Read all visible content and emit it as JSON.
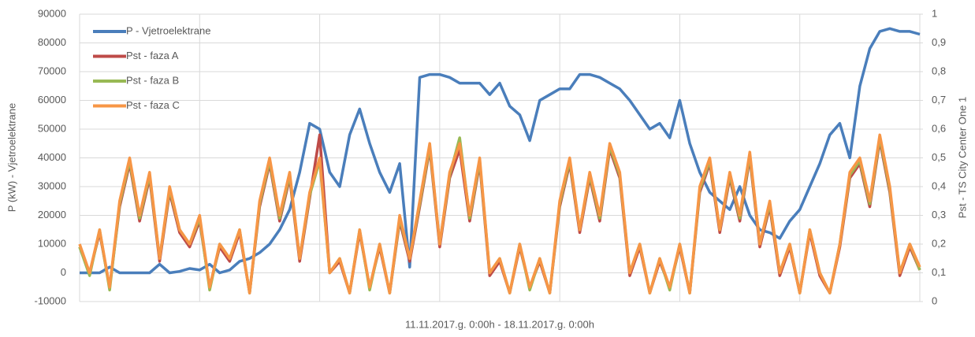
{
  "chart_data": {
    "type": "line",
    "x_label": "11.11.2017.g. 0:00h - 18.11.2017.g. 0:00h",
    "y_label": "P (kW) - Vjetroelektrane",
    "y2_label": "Pst - TS City Center One 1",
    "x": [
      0,
      2,
      4,
      6,
      8,
      10,
      12,
      14,
      16,
      18,
      20,
      22,
      24,
      26,
      28,
      30,
      32,
      34,
      36,
      38,
      40,
      42,
      44,
      46,
      48,
      50,
      52,
      54,
      56,
      58,
      60,
      62,
      64,
      66,
      68,
      70,
      72,
      74,
      76,
      78,
      80,
      82,
      84,
      86,
      88,
      90,
      92,
      94,
      96,
      98,
      100,
      102,
      104,
      106,
      108,
      110,
      112,
      114,
      116,
      118,
      120,
      122,
      124,
      126,
      128,
      130,
      132,
      134,
      136,
      138,
      140,
      142,
      144,
      146,
      148,
      150,
      152,
      154,
      156,
      158,
      160,
      162,
      164,
      166,
      168
    ],
    "xlim": [
      0,
      168
    ],
    "xticks": [
      0,
      24,
      48,
      72,
      96,
      120,
      144,
      168
    ],
    "ylim": [
      -10000,
      90000
    ],
    "yticks": [
      -10000,
      0,
      10000,
      20000,
      30000,
      40000,
      50000,
      60000,
      70000,
      80000,
      90000
    ],
    "y2lim": [
      0,
      1
    ],
    "y2ticks": [
      0,
      {
        "value": 0.1,
        "label": "0,1"
      },
      {
        "value": 0.2,
        "label": "0,2"
      },
      {
        "value": 0.3,
        "label": "0,3"
      },
      {
        "value": 0.4,
        "label": "0,4"
      },
      {
        "value": 0.5,
        "label": "0,5"
      },
      {
        "value": 0.6,
        "label": "0,6"
      },
      {
        "value": 0.7,
        "label": "0,7"
      },
      {
        "value": 0.8,
        "label": "0,8"
      },
      {
        "value": 0.9,
        "label": "0,9"
      },
      1
    ],
    "grid": true,
    "legend": "upper-left",
    "series": [
      {
        "name": "P - Vjetroelektrane",
        "color": "#4a7ebb",
        "axis": "y",
        "values": [
          0,
          0,
          0,
          2000,
          0,
          0,
          0,
          0,
          3000,
          0,
          500,
          1500,
          1000,
          3000,
          0,
          1000,
          4000,
          5000,
          7000,
          10000,
          15000,
          22000,
          35000,
          52000,
          50000,
          35000,
          30000,
          48000,
          57000,
          45000,
          35000,
          28000,
          38000,
          2000,
          68000,
          69000,
          69000,
          68000,
          66000,
          66000,
          66000,
          62000,
          66000,
          58000,
          55000,
          46000,
          60000,
          62000,
          64000,
          64000,
          69000,
          69000,
          68000,
          66000,
          64000,
          60000,
          55000,
          50000,
          52000,
          47000,
          60000,
          45000,
          35000,
          28000,
          25000,
          22000,
          30000,
          20000,
          15000,
          14000,
          12000,
          18000,
          22000,
          30000,
          38000,
          48000,
          52000,
          40000,
          65000,
          78000,
          84000,
          85000,
          84000,
          84000,
          83000
        ]
      },
      {
        "name": "Pst - faza A",
        "color": "#be4b48",
        "axis": "y2",
        "values": [
          0.19,
          0.1,
          0.24,
          0.05,
          0.33,
          0.48,
          0.28,
          0.43,
          0.14,
          0.38,
          0.24,
          0.19,
          0.28,
          0.05,
          0.19,
          0.14,
          0.24,
          0.03,
          0.33,
          0.48,
          0.28,
          0.43,
          0.14,
          0.36,
          0.58,
          0.1,
          0.14,
          0.03,
          0.24,
          0.05,
          0.19,
          0.03,
          0.28,
          0.14,
          0.33,
          0.53,
          0.19,
          0.43,
          0.53,
          0.28,
          0.48,
          0.09,
          0.14,
          0.03,
          0.19,
          0.05,
          0.14,
          0.03,
          0.33,
          0.48,
          0.24,
          0.43,
          0.28,
          0.53,
          0.43,
          0.09,
          0.19,
          0.03,
          0.14,
          0.05,
          0.19,
          0.03,
          0.38,
          0.48,
          0.24,
          0.43,
          0.28,
          0.5,
          0.19,
          0.33,
          0.09,
          0.19,
          0.03,
          0.24,
          0.09,
          0.03,
          0.19,
          0.43,
          0.48,
          0.33,
          0.56,
          0.38,
          0.09,
          0.19,
          0.11
        ]
      },
      {
        "name": "Pst - faza B",
        "color": "#98b954",
        "axis": "y2",
        "values": [
          0.19,
          0.09,
          0.25,
          0.04,
          0.34,
          0.49,
          0.29,
          0.44,
          0.15,
          0.39,
          0.25,
          0.2,
          0.29,
          0.04,
          0.2,
          0.15,
          0.25,
          0.03,
          0.34,
          0.49,
          0.29,
          0.44,
          0.15,
          0.37,
          0.49,
          0.1,
          0.15,
          0.03,
          0.25,
          0.04,
          0.2,
          0.03,
          0.29,
          0.15,
          0.34,
          0.54,
          0.2,
          0.44,
          0.57,
          0.29,
          0.49,
          0.1,
          0.15,
          0.03,
          0.2,
          0.04,
          0.15,
          0.03,
          0.34,
          0.49,
          0.25,
          0.44,
          0.29,
          0.54,
          0.44,
          0.1,
          0.2,
          0.03,
          0.15,
          0.04,
          0.2,
          0.03,
          0.39,
          0.49,
          0.25,
          0.44,
          0.29,
          0.51,
          0.2,
          0.34,
          0.1,
          0.2,
          0.03,
          0.25,
          0.1,
          0.03,
          0.2,
          0.44,
          0.49,
          0.34,
          0.57,
          0.39,
          0.1,
          0.2,
          0.11
        ]
      },
      {
        "name": "Pst - faza C",
        "color": "#f79646",
        "axis": "y2",
        "values": [
          0.2,
          0.1,
          0.25,
          0.05,
          0.35,
          0.5,
          0.3,
          0.45,
          0.15,
          0.4,
          0.25,
          0.2,
          0.3,
          0.05,
          0.2,
          0.15,
          0.25,
          0.03,
          0.35,
          0.5,
          0.3,
          0.45,
          0.15,
          0.38,
          0.5,
          0.1,
          0.15,
          0.03,
          0.25,
          0.05,
          0.2,
          0.03,
          0.3,
          0.15,
          0.35,
          0.55,
          0.2,
          0.45,
          0.55,
          0.3,
          0.5,
          0.1,
          0.15,
          0.03,
          0.2,
          0.05,
          0.15,
          0.03,
          0.35,
          0.5,
          0.25,
          0.45,
          0.3,
          0.55,
          0.45,
          0.1,
          0.2,
          0.03,
          0.15,
          0.05,
          0.2,
          0.03,
          0.4,
          0.5,
          0.25,
          0.45,
          0.3,
          0.52,
          0.2,
          0.35,
          0.1,
          0.2,
          0.03,
          0.25,
          0.1,
          0.03,
          0.2,
          0.45,
          0.5,
          0.35,
          0.58,
          0.4,
          0.1,
          0.2,
          0.12
        ]
      }
    ]
  }
}
